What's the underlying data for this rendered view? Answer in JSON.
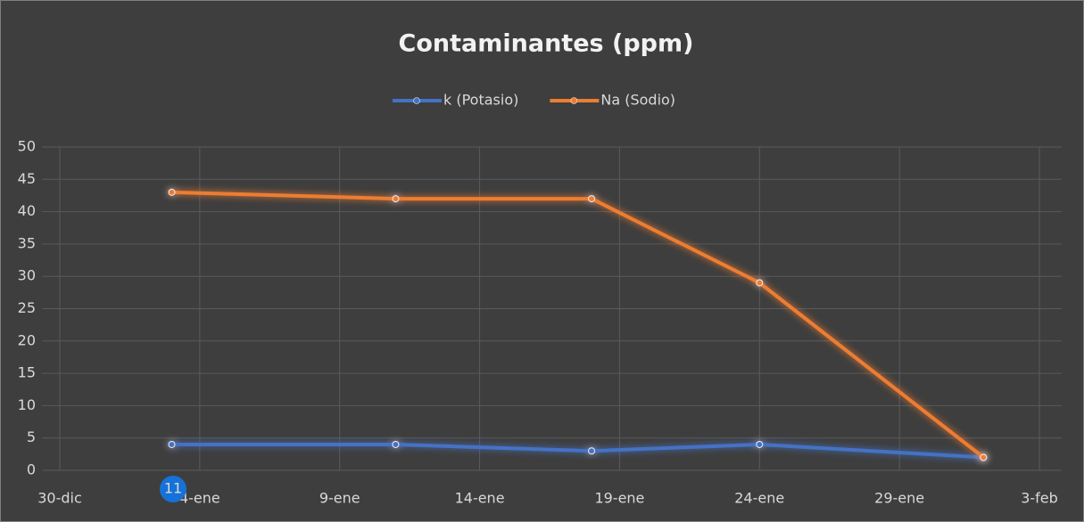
{
  "chart_data": {
    "type": "line",
    "title": "Contaminantes (ppm)",
    "x": [
      "3-ene",
      "11-ene",
      "18-ene",
      "24-ene",
      "1-feb"
    ],
    "series": [
      {
        "name": "k (Potasio)",
        "color": "#4472c4",
        "values": [
          4,
          4,
          3,
          4,
          2
        ]
      },
      {
        "name": "Na (Sodio)",
        "color": "#ed7d31",
        "values": [
          43,
          42,
          42,
          29,
          2
        ]
      }
    ],
    "xlim": [
      "30-dic",
      "3-feb"
    ],
    "xticks": [
      "30-dic",
      "4-ene",
      "9-ene",
      "14-ene",
      "19-ene",
      "24-ene",
      "29-ene",
      "3-feb"
    ],
    "ylim": [
      0,
      50
    ],
    "yticks": [
      0,
      5,
      10,
      15,
      20,
      25,
      30,
      35,
      40,
      45,
      50
    ],
    "grid": true,
    "legend": "top",
    "badge": "11"
  }
}
